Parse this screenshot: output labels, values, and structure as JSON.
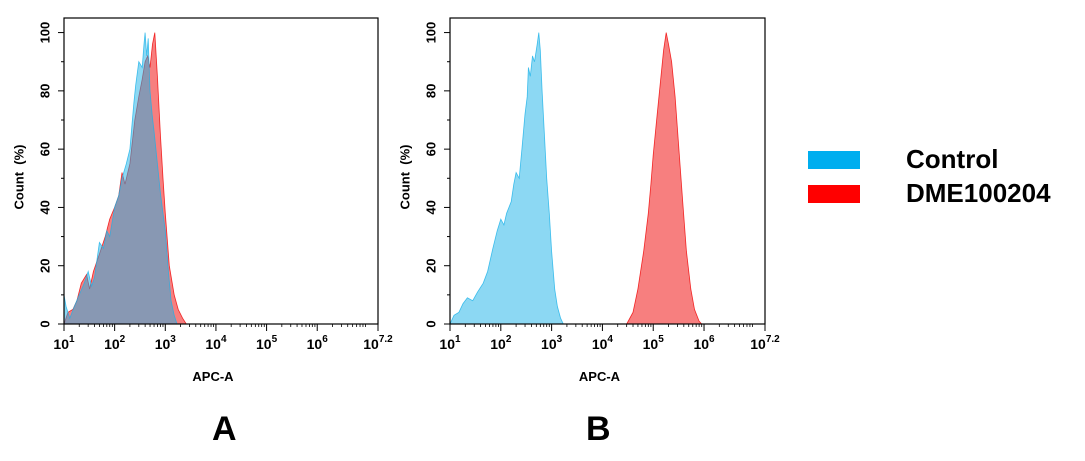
{
  "chart_data": [
    {
      "type": "area",
      "panel_label": "A",
      "xlabel": "APC-A",
      "ylabel": "Count  (%)",
      "x_scale": "log10",
      "xlim": [
        10,
        15848931.92
      ],
      "ylim": [
        0,
        105
      ],
      "x_ticks": [
        {
          "value": 10,
          "base": "10",
          "exp": "1"
        },
        {
          "value": 100,
          "base": "10",
          "exp": "2"
        },
        {
          "value": 1000,
          "base": "10",
          "exp": "3"
        },
        {
          "value": 10000,
          "base": "10",
          "exp": "4"
        },
        {
          "value": 100000,
          "base": "10",
          "exp": "5"
        },
        {
          "value": 1000000,
          "base": "10",
          "exp": "6"
        },
        {
          "value": 15848931.92,
          "base": "10",
          "exp": "7.2"
        }
      ],
      "y_ticks": [
        0,
        20,
        40,
        60,
        80,
        100
      ],
      "series": [
        {
          "name": "DME100204",
          "color": "#f00000",
          "points": [
            [
              10,
              0
            ],
            [
              12,
              4
            ],
            [
              15,
              5
            ],
            [
              18,
              8
            ],
            [
              22,
              14
            ],
            [
              28,
              17
            ],
            [
              32,
              12
            ],
            [
              38,
              18
            ],
            [
              50,
              24
            ],
            [
              65,
              30
            ],
            [
              80,
              36
            ],
            [
              100,
              40
            ],
            [
              120,
              44
            ],
            [
              140,
              52
            ],
            [
              160,
              48
            ],
            [
              200,
              55
            ],
            [
              250,
              70
            ],
            [
              300,
              78
            ],
            [
              350,
              84
            ],
            [
              400,
              90
            ],
            [
              450,
              92
            ],
            [
              500,
              88
            ],
            [
              560,
              96
            ],
            [
              620,
              100
            ],
            [
              700,
              85
            ],
            [
              800,
              65
            ],
            [
              900,
              50
            ],
            [
              1000,
              38
            ],
            [
              1200,
              20
            ],
            [
              1500,
              10
            ],
            [
              1800,
              5
            ],
            [
              2200,
              2
            ],
            [
              2600,
              0
            ]
          ]
        },
        {
          "name": "Control",
          "color": "#1ab2e8",
          "points": [
            [
              10,
              10
            ],
            [
              11,
              6
            ],
            [
              13,
              2
            ],
            [
              16,
              6
            ],
            [
              20,
              10
            ],
            [
              25,
              14
            ],
            [
              30,
              18
            ],
            [
              35,
              13
            ],
            [
              40,
              16
            ],
            [
              50,
              28
            ],
            [
              60,
              26
            ],
            [
              70,
              32
            ],
            [
              80,
              30
            ],
            [
              100,
              40
            ],
            [
              120,
              44
            ],
            [
              140,
              50
            ],
            [
              170,
              55
            ],
            [
              200,
              60
            ],
            [
              240,
              76
            ],
            [
              260,
              82
            ],
            [
              300,
              90
            ],
            [
              350,
              88
            ],
            [
              380,
              96
            ],
            [
              400,
              100
            ],
            [
              430,
              92
            ],
            [
              460,
              98
            ],
            [
              500,
              80
            ],
            [
              550,
              72
            ],
            [
              600,
              66
            ],
            [
              700,
              55
            ],
            [
              800,
              45
            ],
            [
              900,
              38
            ],
            [
              1000,
              32
            ],
            [
              1150,
              18
            ],
            [
              1300,
              8
            ],
            [
              1500,
              3
            ],
            [
              1700,
              0
            ]
          ]
        }
      ]
    },
    {
      "type": "area",
      "panel_label": "B",
      "xlabel": "APC-A",
      "ylabel": "Count  (%)",
      "x_scale": "log10",
      "xlim": [
        10,
        15848931.92
      ],
      "ylim": [
        0,
        105
      ],
      "x_ticks": [
        {
          "value": 10,
          "base": "10",
          "exp": "1"
        },
        {
          "value": 100,
          "base": "10",
          "exp": "2"
        },
        {
          "value": 1000,
          "base": "10",
          "exp": "3"
        },
        {
          "value": 10000,
          "base": "10",
          "exp": "4"
        },
        {
          "value": 100000,
          "base": "10",
          "exp": "5"
        },
        {
          "value": 1000000,
          "base": "10",
          "exp": "6"
        },
        {
          "value": 15848931.92,
          "base": "10",
          "exp": "7.2"
        }
      ],
      "y_ticks": [
        0,
        20,
        40,
        60,
        80,
        100
      ],
      "series": [
        {
          "name": "Control",
          "color": "#1ab2e8",
          "points": [
            [
              10,
              0
            ],
            [
              12,
              3
            ],
            [
              15,
              4
            ],
            [
              18,
              7
            ],
            [
              22,
              9
            ],
            [
              28,
              8
            ],
            [
              35,
              11
            ],
            [
              45,
              14
            ],
            [
              55,
              18
            ],
            [
              70,
              26
            ],
            [
              85,
              32
            ],
            [
              100,
              36
            ],
            [
              115,
              34
            ],
            [
              130,
              38
            ],
            [
              160,
              42
            ],
            [
              180,
              48
            ],
            [
              200,
              52
            ],
            [
              230,
              50
            ],
            [
              260,
              60
            ],
            [
              300,
              72
            ],
            [
              330,
              78
            ],
            [
              350,
              88
            ],
            [
              380,
              85
            ],
            [
              420,
              92
            ],
            [
              460,
              90
            ],
            [
              520,
              96
            ],
            [
              560,
              100
            ],
            [
              600,
              94
            ],
            [
              650,
              80
            ],
            [
              720,
              65
            ],
            [
              800,
              50
            ],
            [
              900,
              38
            ],
            [
              1000,
              25
            ],
            [
              1150,
              12
            ],
            [
              1300,
              6
            ],
            [
              1500,
              2
            ],
            [
              1700,
              0
            ]
          ]
        },
        {
          "name": "DME100204",
          "color": "#f00000",
          "points": [
            [
              30000,
              0
            ],
            [
              40000,
              4
            ],
            [
              50000,
              12
            ],
            [
              65000,
              25
            ],
            [
              80000,
              38
            ],
            [
              90000,
              48
            ],
            [
              100000,
              58
            ],
            [
              120000,
              72
            ],
            [
              140000,
              84
            ],
            [
              160000,
              94
            ],
            [
              180000,
              100
            ],
            [
              200000,
              96
            ],
            [
              230000,
              90
            ],
            [
              270000,
              78
            ],
            [
              320000,
              60
            ],
            [
              380000,
              42
            ],
            [
              450000,
              25
            ],
            [
              550000,
              12
            ],
            [
              650000,
              5
            ],
            [
              800000,
              1
            ],
            [
              900000,
              0
            ]
          ]
        }
      ]
    }
  ],
  "legend": [
    {
      "label": "Control",
      "color": "#00aeef"
    },
    {
      "label": "DME100204",
      "color": "#ff0000"
    }
  ]
}
